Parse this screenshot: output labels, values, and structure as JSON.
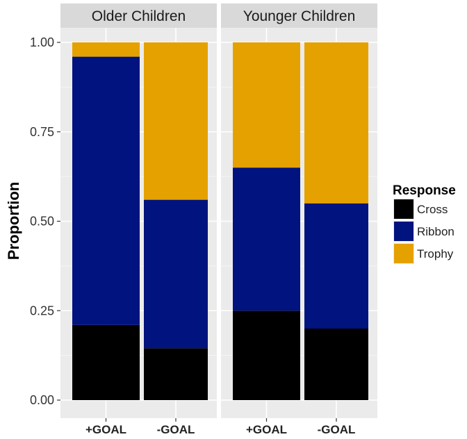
{
  "chart_data": {
    "type": "bar",
    "stacked": true,
    "ylabel": "Proportion",
    "ylim": [
      0,
      1
    ],
    "yticks": [
      "0.00",
      "0.25",
      "0.50",
      "0.75",
      "1.00"
    ],
    "grid": true,
    "legend": {
      "title": "Response",
      "placement": "right",
      "entries": [
        "Cross",
        "Ribbon",
        "Trophy"
      ]
    },
    "colors": {
      "Cross": "#000000",
      "Ribbon": "#00137f",
      "Trophy": "#e5a100",
      "panel_bg": "#ebebeb",
      "strip_bg": "#d9d9d9",
      "grid": "#ffffff"
    },
    "categories": [
      "+GOAL",
      "-GOAL"
    ],
    "facets": [
      {
        "label": "Older Children",
        "series": [
          {
            "name": "Cross",
            "values": [
              0.21,
              0.145
            ]
          },
          {
            "name": "Ribbon",
            "values": [
              0.75,
              0.415
            ]
          },
          {
            "name": "Trophy",
            "values": [
              0.04,
              0.44
            ]
          }
        ]
      },
      {
        "label": "Younger Children",
        "series": [
          {
            "name": "Cross",
            "values": [
              0.25,
              0.2
            ]
          },
          {
            "name": "Ribbon",
            "values": [
              0.4,
              0.35
            ]
          },
          {
            "name": "Trophy",
            "values": [
              0.35,
              0.45
            ]
          }
        ]
      }
    ]
  }
}
